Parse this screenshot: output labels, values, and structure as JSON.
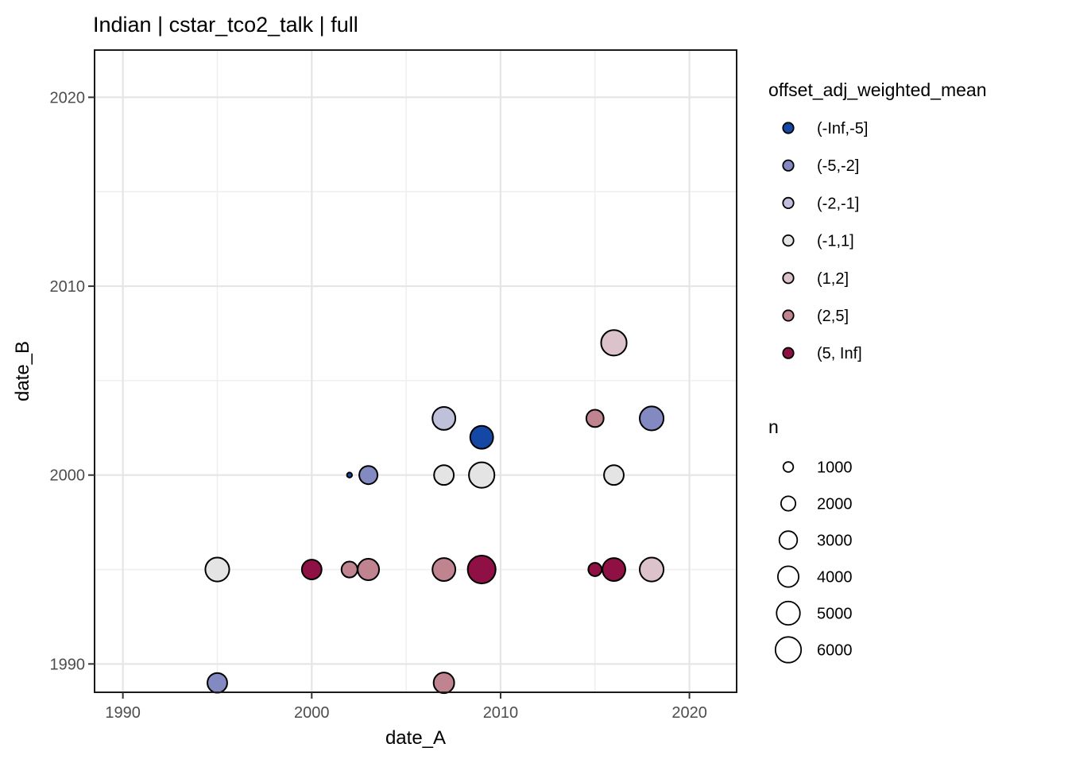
{
  "title": "Indian | cstar_tco2_talk | full",
  "axes": {
    "x": {
      "label": "date_A",
      "ticks": [
        1990,
        2000,
        2010,
        2020
      ],
      "minor_ticks": [
        1995,
        2005,
        2015
      ],
      "range": [
        1988.5,
        2022.5
      ]
    },
    "y": {
      "label": "date_B",
      "ticks": [
        1990,
        2000,
        2010,
        2020
      ],
      "minor_ticks": [
        1995,
        2005,
        2015
      ],
      "range": [
        1988.5,
        2022.5
      ]
    }
  },
  "legend_color": {
    "title": "offset_adj_weighted_mean",
    "items": [
      {
        "label": "(-Inf,-5]",
        "color": "#1548a4"
      },
      {
        "label": "(-5,-2]",
        "color": "#838ac1"
      },
      {
        "label": "(-2,-1]",
        "color": "#bfc0da"
      },
      {
        "label": "(-1,1]",
        "color": "#e4e4e5"
      },
      {
        "label": "(1,2]",
        "color": "#dcc2cb"
      },
      {
        "label": "(2,5]",
        "color": "#c08390"
      },
      {
        "label": "(5, Inf]",
        "color": "#8e1044"
      }
    ]
  },
  "legend_size": {
    "title": "n",
    "items": [
      {
        "label": "1000",
        "n": 1000
      },
      {
        "label": "2000",
        "n": 2000
      },
      {
        "label": "3000",
        "n": 3000
      },
      {
        "label": "4000",
        "n": 4000
      },
      {
        "label": "5000",
        "n": 5000
      },
      {
        "label": "6000",
        "n": 6000
      }
    ]
  },
  "chart_data": {
    "type": "scatter",
    "title": "Indian | cstar_tco2_talk | full",
    "xlabel": "date_A",
    "ylabel": "date_B",
    "xlim": [
      1988.5,
      2022.5
    ],
    "ylim": [
      1988.5,
      2022.5
    ],
    "grid": true,
    "legend_position": "right",
    "color_variable": "offset_adj_weighted_mean",
    "size_variable": "n",
    "points": [
      {
        "date_A": 1995,
        "date_B": 1989,
        "bin": "(-5,-2]",
        "n": 3600
      },
      {
        "date_A": 2007,
        "date_B": 1989,
        "bin": "(2,5]",
        "n": 3900
      },
      {
        "date_A": 1995,
        "date_B": 1995,
        "bin": "(-1,1]",
        "n": 5200
      },
      {
        "date_A": 2000,
        "date_B": 1995,
        "bin": "(5, Inf]",
        "n": 3600
      },
      {
        "date_A": 2002,
        "date_B": 1995,
        "bin": "(2,5]",
        "n": 2400
      },
      {
        "date_A": 2003,
        "date_B": 1995,
        "bin": "(2,5]",
        "n": 4200
      },
      {
        "date_A": 2007,
        "date_B": 1995,
        "bin": "(2,5]",
        "n": 4800
      },
      {
        "date_A": 2009,
        "date_B": 1995,
        "bin": "(5, Inf]",
        "n": 7000
      },
      {
        "date_A": 2015,
        "date_B": 1995,
        "bin": "(5, Inf]",
        "n": 1700
      },
      {
        "date_A": 2016,
        "date_B": 1995,
        "bin": "(5, Inf]",
        "n": 4800
      },
      {
        "date_A": 2018,
        "date_B": 1995,
        "bin": "(1,2]",
        "n": 5200
      },
      {
        "date_A": 2002,
        "date_B": 2000,
        "bin": "(-Inf,-5]",
        "n": 300
      },
      {
        "date_A": 2003,
        "date_B": 2000,
        "bin": "(-5,-2]",
        "n": 3100
      },
      {
        "date_A": 2007,
        "date_B": 2000,
        "bin": "(-1,1]",
        "n": 3600
      },
      {
        "date_A": 2009,
        "date_B": 2000,
        "bin": "(-1,1]",
        "n": 5900
      },
      {
        "date_A": 2016,
        "date_B": 2000,
        "bin": "(-1,1]",
        "n": 3600
      },
      {
        "date_A": 2009,
        "date_B": 2002,
        "bin": "(-Inf,-5]",
        "n": 4800
      },
      {
        "date_A": 2007,
        "date_B": 2003,
        "bin": "(-2,-1]",
        "n": 4800
      },
      {
        "date_A": 2015,
        "date_B": 2003,
        "bin": "(2,5]",
        "n": 2800
      },
      {
        "date_A": 2018,
        "date_B": 2003,
        "bin": "(-5,-2]",
        "n": 5200
      },
      {
        "date_A": 2016,
        "date_B": 2007,
        "bin": "(1,2]",
        "n": 5900
      }
    ]
  },
  "style_colors": {
    "grid_major": "#e5e5e5",
    "grid_minor": "#efefef",
    "panel_border": "#1a1a1a",
    "point_stroke": "#000000",
    "tick_mark": "#333333"
  }
}
